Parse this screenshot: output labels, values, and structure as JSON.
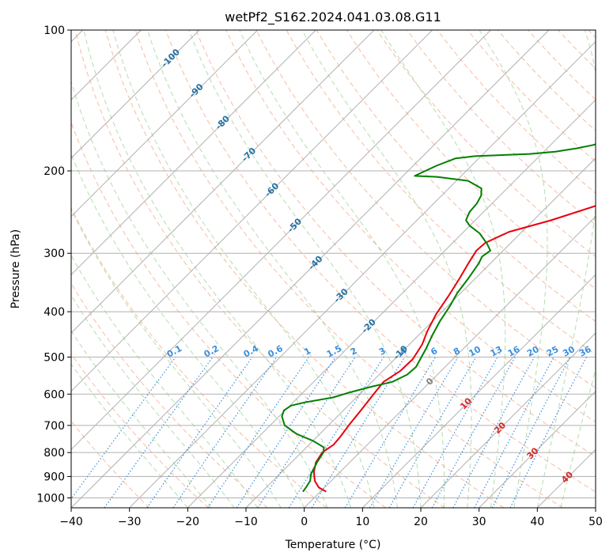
{
  "chart_data": {
    "type": "line",
    "title": "wetPf2_S162.2024.041.03.08.G11",
    "xlabel": "Temperature (°C)",
    "ylabel": "Pressure (hPa)",
    "xlim": [
      -40,
      50
    ],
    "ylim": [
      1050,
      100
    ],
    "y_scale": "log",
    "grid": true,
    "x_ticks": [
      -40,
      -30,
      -20,
      -10,
      0,
      10,
      20,
      30,
      40,
      50
    ],
    "y_ticks": [
      1000,
      900,
      800,
      700,
      600,
      500,
      400,
      300,
      200,
      100
    ],
    "colors": {
      "temperature": "#e8000b",
      "dewpoint": "#008000",
      "isotherms": "#b0b0b0",
      "dry_adiabats": "#f4a582",
      "moist_adiabats": "#a6d7a0",
      "mixing_ratio": "#3a8fe0",
      "isotherm_labels_cold": "#2471a3",
      "isotherm_labels_warm": "#d62728",
      "zero_isotherm_label": "#808080"
    },
    "series": [
      {
        "line": "temperature",
        "points": [
          [
            1.0,
            970
          ],
          [
            -1.0,
            950
          ],
          [
            -2.8,
            920
          ],
          [
            -4.5,
            880
          ],
          [
            -5.8,
            840
          ],
          [
            -6.4,
            800
          ],
          [
            -5.8,
            770
          ],
          [
            -6.0,
            740
          ],
          [
            -6.5,
            700
          ],
          [
            -7.0,
            650
          ],
          [
            -7.6,
            600
          ],
          [
            -8.0,
            565
          ],
          [
            -7.0,
            535
          ],
          [
            -6.9,
            505
          ],
          [
            -7.8,
            470
          ],
          [
            -9.2,
            440
          ],
          [
            -10.6,
            405
          ],
          [
            -11.6,
            370
          ],
          [
            -12.7,
            340
          ],
          [
            -13.8,
            315
          ],
          [
            -14.6,
            296
          ],
          [
            -14.4,
            285
          ],
          [
            -12.2,
            270
          ],
          [
            -7.0,
            255
          ],
          [
            -1.0,
            235
          ],
          [
            5.0,
            215
          ],
          [
            10.0,
            200
          ],
          [
            15.0,
            183
          ],
          [
            20.0,
            168
          ],
          [
            23.0,
            157
          ],
          [
            26.5,
            145
          ],
          [
            29.0,
            134
          ],
          [
            33.0,
            122
          ],
          [
            37.0,
            112
          ],
          [
            40.0,
            103
          ],
          [
            41.0,
            100
          ]
        ]
      },
      {
        "line": "dewpoint",
        "points": [
          [
            -3.0,
            970
          ],
          [
            -3.2,
            950
          ],
          [
            -3.6,
            920
          ],
          [
            -4.6,
            890
          ],
          [
            -5.6,
            840
          ],
          [
            -6.2,
            800
          ],
          [
            -7.0,
            780
          ],
          [
            -10.0,
            755
          ],
          [
            -14.0,
            730
          ],
          [
            -17.5,
            700
          ],
          [
            -19.5,
            670
          ],
          [
            -20.2,
            650
          ],
          [
            -19.8,
            635
          ],
          [
            -18.0,
            625
          ],
          [
            -14.0,
            610
          ],
          [
            -12.0,
            595
          ],
          [
            -9.5,
            580
          ],
          [
            -6.5,
            565
          ],
          [
            -5.2,
            545
          ],
          [
            -5.0,
            525
          ],
          [
            -5.6,
            505
          ],
          [
            -6.4,
            480
          ],
          [
            -7.6,
            450
          ],
          [
            -8.7,
            420
          ],
          [
            -9.6,
            390
          ],
          [
            -10.6,
            365
          ],
          [
            -11.2,
            340
          ],
          [
            -12.0,
            315
          ],
          [
            -12.6,
            305
          ],
          [
            -12.2,
            296
          ],
          [
            -14.0,
            286
          ],
          [
            -17.0,
            272
          ],
          [
            -20.0,
            262
          ],
          [
            -21.6,
            255
          ],
          [
            -22.4,
            245
          ],
          [
            -22.6,
            235
          ],
          [
            -23.2,
            226
          ],
          [
            -24.4,
            218
          ],
          [
            -28.0,
            210
          ],
          [
            -34.0,
            206
          ],
          [
            -38.0,
            205
          ],
          [
            -36.0,
            195
          ],
          [
            -34.0,
            188
          ],
          [
            -31.0,
            186
          ],
          [
            -22.0,
            184
          ],
          [
            -18.0,
            182
          ],
          [
            -15.0,
            179
          ],
          [
            -12.6,
            176
          ],
          [
            -10.6,
            170
          ],
          [
            -9.0,
            162
          ],
          [
            -7.6,
            154
          ],
          [
            -6.6,
            146
          ],
          [
            -5.6,
            137
          ],
          [
            -4.6,
            128
          ],
          [
            -3.8,
            120
          ],
          [
            -2.8,
            112
          ],
          [
            -1.6,
            105
          ],
          [
            -0.4,
            100
          ]
        ]
      }
    ],
    "isotherm_labels": [
      "-100",
      "-90",
      "-80",
      "-70",
      "-60",
      "-50",
      "-40",
      "-30",
      "-20",
      "-10",
      "0",
      "10",
      "20",
      "30",
      "40"
    ],
    "mixing_ratio_labels": [
      "0.1",
      "0.2",
      "0.4",
      "0.6",
      "1",
      "1.5",
      "2",
      "3",
      "4",
      "6",
      "8",
      "10",
      "13",
      "16",
      "20",
      "25",
      "30",
      "36"
    ]
  }
}
